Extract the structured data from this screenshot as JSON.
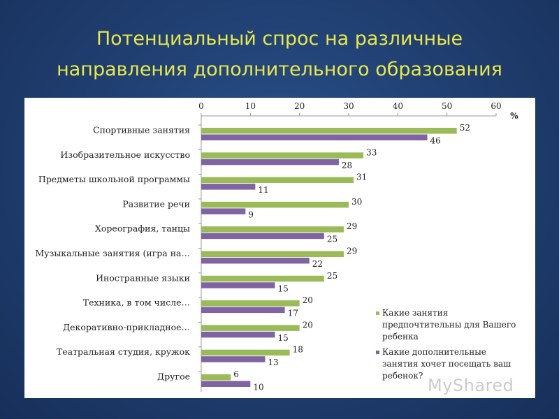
{
  "slide": {
    "title_line1": "Потенциальный спрос на различные",
    "title_line2": "направления дополнительного образования"
  },
  "watermark": "MyShared",
  "colors": {
    "background": "#1f3d6e",
    "title": "#e8e84a",
    "series1": "#9bbb59",
    "series2": "#8064a2"
  },
  "chart_data": {
    "type": "bar",
    "orientation": "horizontal",
    "title": "",
    "unit_label": "%",
    "xlim": [
      0,
      60
    ],
    "ticks": [
      0,
      10,
      20,
      30,
      40,
      50,
      60
    ],
    "axis_position": "top",
    "gridlines": false,
    "legend_position": "right",
    "categories": [
      "Спортивные занятия",
      "Изобразительное искусство",
      "Предметы школьной программы",
      "Развитие речи",
      "Хореография, танцы",
      "Музыкальные занятия (игра на…",
      "Иностранные языки",
      "Техника, в том числе…",
      "Декоративно-прикладное…",
      "Театральная студия, кружок",
      "Другое"
    ],
    "series": [
      {
        "name": "Какие занятия предпочтительны для Вашего ребенка",
        "legend_lines": [
          "Какие занятия",
          "предпочтительны для Вашего",
          "ребенка"
        ],
        "color": "#9bbb59",
        "values": [
          52,
          33,
          31,
          30,
          29,
          29,
          25,
          20,
          20,
          18,
          6
        ]
      },
      {
        "name": "Какие дополнительные занятия хочет посещать ваш ребенок?",
        "legend_lines": [
          "Какие дополнительные",
          "занятия хочет посещать ваш",
          "ребенок?"
        ],
        "color": "#8064a2",
        "values": [
          46,
          28,
          11,
          9,
          25,
          22,
          15,
          17,
          15,
          13,
          10
        ]
      }
    ]
  }
}
